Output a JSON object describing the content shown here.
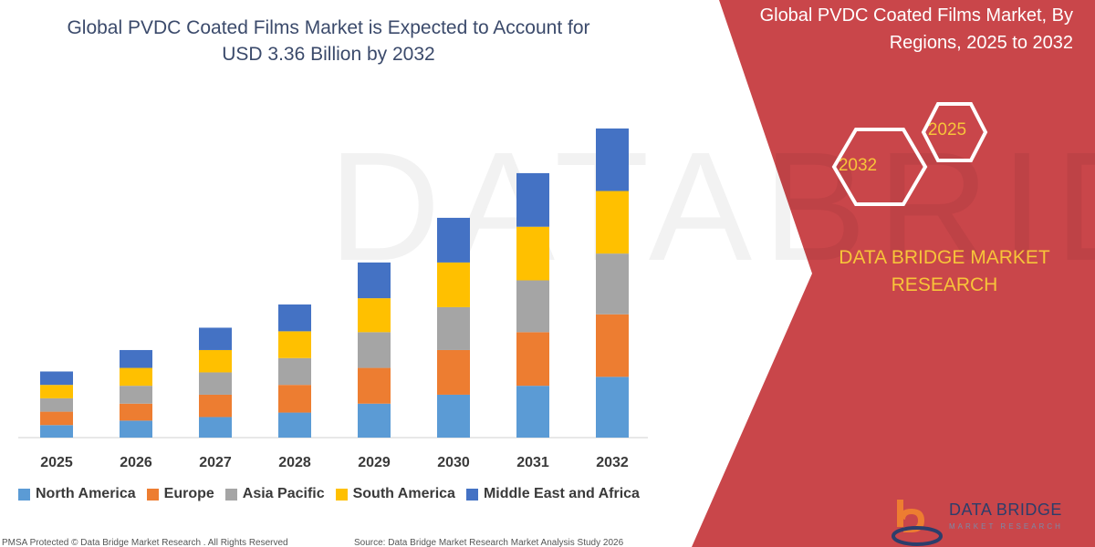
{
  "title_line1": "Global PVDC Coated Films Market is Expected to Account for",
  "title_line2": "USD 3.36 Billion by 2032",
  "panel": {
    "title_line1": "Global PVDC Coated Films Market, By",
    "title_line2": "Regions, 2025 to 2032",
    "hex_front": "2032",
    "hex_back": "2025",
    "company_line1": "DATA BRIDGE MARKET",
    "company_line2": "RESEARCH",
    "bg_color": "#c9464a",
    "accent_color": "#f7c43a"
  },
  "footer": {
    "left": "PMSA Protected © Data Bridge Market Research . All Rights Reserved",
    "right": "Source: Data Bridge Market Research Market Analysis Study 2026"
  },
  "brand": {
    "name": "DATA BRIDGE",
    "sub": "MARKET RESEARCH",
    "logo_icon": "data-bridge-logo-icon"
  },
  "chart_data": {
    "type": "bar",
    "stacked": true,
    "categories": [
      "2025",
      "2026",
      "2027",
      "2028",
      "2029",
      "2030",
      "2031",
      "2032"
    ],
    "series": [
      {
        "name": "North America",
        "color": "#5b9bd5",
        "values": [
          14,
          19,
          23,
          28,
          38,
          48,
          58,
          68
        ]
      },
      {
        "name": "Europe",
        "color": "#ed7d31",
        "values": [
          15,
          19,
          25,
          31,
          40,
          50,
          60,
          70
        ]
      },
      {
        "name": "Asia Pacific",
        "color": "#a5a5a5",
        "values": [
          15,
          20,
          25,
          30,
          40,
          48,
          58,
          68
        ]
      },
      {
        "name": "South America",
        "color": "#ffc000",
        "values": [
          15,
          20,
          25,
          30,
          38,
          50,
          60,
          70
        ]
      },
      {
        "name": "Middle East and Africa",
        "color": "#4472c4",
        "values": [
          15,
          20,
          25,
          30,
          40,
          50,
          60,
          70
        ]
      }
    ],
    "grid": false,
    "legend_position": "bottom"
  }
}
